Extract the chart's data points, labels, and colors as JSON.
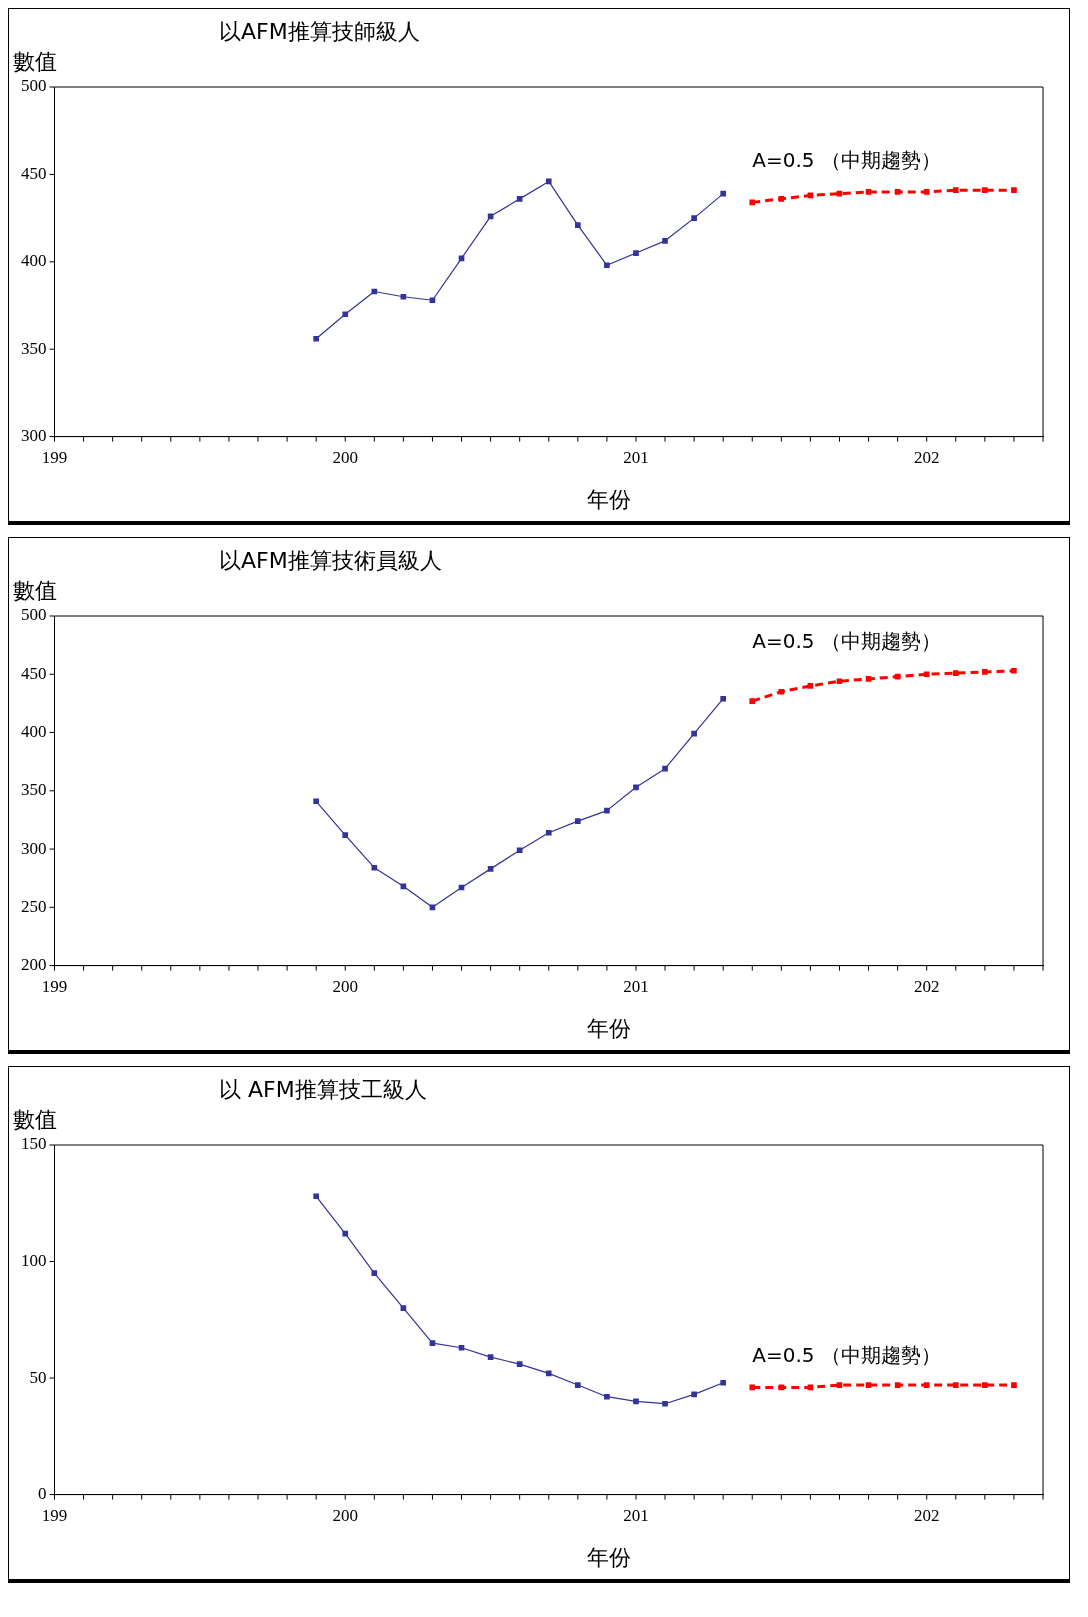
{
  "chart_data": [
    {
      "type": "line",
      "title": "以AFM推算技師級人",
      "xlabel": "年份",
      "ylabel": "數值",
      "xlim": [
        199,
        202.4
      ],
      "xticks": [
        199,
        {
          "value": 199.1,
          "label": null
        },
        {
          "value": 199.2,
          "label": null
        },
        {
          "value": 199.3,
          "label": null
        },
        {
          "value": 199.4,
          "label": null
        },
        {
          "value": 199.5,
          "label": null
        },
        {
          "value": 199.6,
          "label": null
        },
        {
          "value": 199.7,
          "label": null
        },
        {
          "value": 199.8,
          "label": null
        },
        {
          "value": 199.9,
          "label": null
        },
        200,
        {
          "value": 200.1,
          "label": null
        },
        {
          "value": 200.2,
          "label": null
        },
        {
          "value": 200.3,
          "label": null
        },
        {
          "value": 200.4,
          "label": null
        },
        {
          "value": 200.5,
          "label": null
        },
        {
          "value": 200.6,
          "label": null
        },
        {
          "value": 200.7,
          "label": null
        },
        {
          "value": 200.8,
          "label": null
        },
        {
          "value": 200.9,
          "label": null
        },
        201,
        {
          "value": 201.1,
          "label": null
        },
        {
          "value": 201.2,
          "label": null
        },
        {
          "value": 201.3,
          "label": null
        },
        {
          "value": 201.4,
          "label": null
        },
        {
          "value": 201.5,
          "label": null
        },
        {
          "value": 201.6,
          "label": null
        },
        {
          "value": 201.7,
          "label": null
        },
        {
          "value": 201.8,
          "label": null
        },
        {
          "value": 201.9,
          "label": null
        },
        202,
        {
          "value": 202.1,
          "label": null
        },
        {
          "value": 202.2,
          "label": null
        },
        {
          "value": 202.3,
          "label": null
        },
        {
          "value": 202.4,
          "label": null
        }
      ],
      "ylim": [
        300,
        500
      ],
      "yticks": [
        300,
        350,
        400,
        450,
        500
      ],
      "grid": false,
      "legend": false,
      "marker": "square",
      "annotations": [
        "A=0.5 （中期趨勢）"
      ],
      "series": [
        {
          "color": "#333399",
          "line_style": "solid",
          "x": [
            199.9,
            200,
            200.1,
            200.2,
            200.3,
            200.4,
            200.5,
            200.6,
            200.7,
            200.8,
            200.9,
            201,
            201.1,
            201.2,
            201.3
          ],
          "values": [
            356,
            370,
            383,
            380,
            378,
            402,
            426,
            436,
            446,
            421,
            398,
            405,
            412,
            425,
            439
          ]
        },
        {
          "color": "#ff0000",
          "line_style": "dashed",
          "x": [
            201.4,
            201.5,
            201.6,
            201.7,
            201.8,
            201.9,
            202,
            202.1,
            202.2,
            202.3
          ],
          "values": [
            434,
            436,
            438,
            439,
            440,
            440,
            440,
            441,
            441,
            441
          ]
        }
      ]
    },
    {
      "type": "line",
      "title": "以AFM推算技術員級人",
      "xlabel": "年份",
      "ylabel": "數值",
      "xlim": [
        199,
        202.4
      ],
      "xticks": [
        199,
        {
          "value": 199.1,
          "label": null
        },
        {
          "value": 199.2,
          "label": null
        },
        {
          "value": 199.3,
          "label": null
        },
        {
          "value": 199.4,
          "label": null
        },
        {
          "value": 199.5,
          "label": null
        },
        {
          "value": 199.6,
          "label": null
        },
        {
          "value": 199.7,
          "label": null
        },
        {
          "value": 199.8,
          "label": null
        },
        {
          "value": 199.9,
          "label": null
        },
        200,
        {
          "value": 200.1,
          "label": null
        },
        {
          "value": 200.2,
          "label": null
        },
        {
          "value": 200.3,
          "label": null
        },
        {
          "value": 200.4,
          "label": null
        },
        {
          "value": 200.5,
          "label": null
        },
        {
          "value": 200.6,
          "label": null
        },
        {
          "value": 200.7,
          "label": null
        },
        {
          "value": 200.8,
          "label": null
        },
        {
          "value": 200.9,
          "label": null
        },
        201,
        {
          "value": 201.1,
          "label": null
        },
        {
          "value": 201.2,
          "label": null
        },
        {
          "value": 201.3,
          "label": null
        },
        {
          "value": 201.4,
          "label": null
        },
        {
          "value": 201.5,
          "label": null
        },
        {
          "value": 201.6,
          "label": null
        },
        {
          "value": 201.7,
          "label": null
        },
        {
          "value": 201.8,
          "label": null
        },
        {
          "value": 201.9,
          "label": null
        },
        202,
        {
          "value": 202.1,
          "label": null
        },
        {
          "value": 202.2,
          "label": null
        },
        {
          "value": 202.3,
          "label": null
        },
        {
          "value": 202.4,
          "label": null
        }
      ],
      "ylim": [
        200,
        500
      ],
      "yticks": [
        200,
        250,
        300,
        350,
        400,
        450,
        500
      ],
      "grid": false,
      "legend": false,
      "marker": "square",
      "annotations": [
        "A=0.5 （中期趨勢）"
      ],
      "series": [
        {
          "color": "#333399",
          "line_style": "solid",
          "x": [
            199.9,
            200,
            200.1,
            200.2,
            200.3,
            200.4,
            200.5,
            200.6,
            200.7,
            200.8,
            200.9,
            201,
            201.1,
            201.2,
            201.3
          ],
          "values": [
            341,
            312,
            284,
            268,
            250,
            267,
            283,
            299,
            314,
            324,
            333,
            353,
            369,
            399,
            429
          ]
        },
        {
          "color": "#ff0000",
          "line_style": "dashed",
          "x": [
            201.4,
            201.5,
            201.6,
            201.7,
            201.8,
            201.9,
            202,
            202.1,
            202.2,
            202.3
          ],
          "values": [
            427,
            435,
            440,
            444,
            446,
            448,
            450,
            451,
            452,
            453
          ]
        }
      ]
    },
    {
      "type": "line",
      "title": "以 AFM推算技工級人",
      "xlabel": "年份",
      "ylabel": "數值",
      "xlim": [
        199,
        202.4
      ],
      "xticks": [
        199,
        {
          "value": 199.1,
          "label": null
        },
        {
          "value": 199.2,
          "label": null
        },
        {
          "value": 199.3,
          "label": null
        },
        {
          "value": 199.4,
          "label": null
        },
        {
          "value": 199.5,
          "label": null
        },
        {
          "value": 199.6,
          "label": null
        },
        {
          "value": 199.7,
          "label": null
        },
        {
          "value": 199.8,
          "label": null
        },
        {
          "value": 199.9,
          "label": null
        },
        200,
        {
          "value": 200.1,
          "label": null
        },
        {
          "value": 200.2,
          "label": null
        },
        {
          "value": 200.3,
          "label": null
        },
        {
          "value": 200.4,
          "label": null
        },
        {
          "value": 200.5,
          "label": null
        },
        {
          "value": 200.6,
          "label": null
        },
        {
          "value": 200.7,
          "label": null
        },
        {
          "value": 200.8,
          "label": null
        },
        {
          "value": 200.9,
          "label": null
        },
        201,
        {
          "value": 201.1,
          "label": null
        },
        {
          "value": 201.2,
          "label": null
        },
        {
          "value": 201.3,
          "label": null
        },
        {
          "value": 201.4,
          "label": null
        },
        {
          "value": 201.5,
          "label": null
        },
        {
          "value": 201.6,
          "label": null
        },
        {
          "value": 201.7,
          "label": null
        },
        {
          "value": 201.8,
          "label": null
        },
        {
          "value": 201.9,
          "label": null
        },
        202,
        {
          "value": 202.1,
          "label": null
        },
        {
          "value": 202.2,
          "label": null
        },
        {
          "value": 202.3,
          "label": null
        },
        {
          "value": 202.4,
          "label": null
        }
      ],
      "ylim": [
        0,
        150
      ],
      "yticks": [
        0,
        50,
        100,
        150
      ],
      "grid": false,
      "legend": false,
      "marker": "square",
      "annotations": [
        "A=0.5 （中期趨勢）"
      ],
      "series": [
        {
          "color": "#333399",
          "line_style": "solid",
          "x": [
            199.9,
            200,
            200.1,
            200.2,
            200.3,
            200.4,
            200.5,
            200.6,
            200.7,
            200.8,
            200.9,
            201,
            201.1,
            201.2,
            201.3
          ],
          "values": [
            128,
            112,
            95,
            80,
            65,
            63,
            59,
            56,
            52,
            47,
            42,
            40,
            39,
            43,
            48
          ]
        },
        {
          "color": "#ff0000",
          "line_style": "dashed",
          "x": [
            201.4,
            201.5,
            201.6,
            201.7,
            201.8,
            201.9,
            202,
            202.1,
            202.2,
            202.3
          ],
          "values": [
            46,
            46,
            46,
            47,
            47,
            47,
            47,
            47,
            47,
            47
          ]
        }
      ]
    }
  ]
}
